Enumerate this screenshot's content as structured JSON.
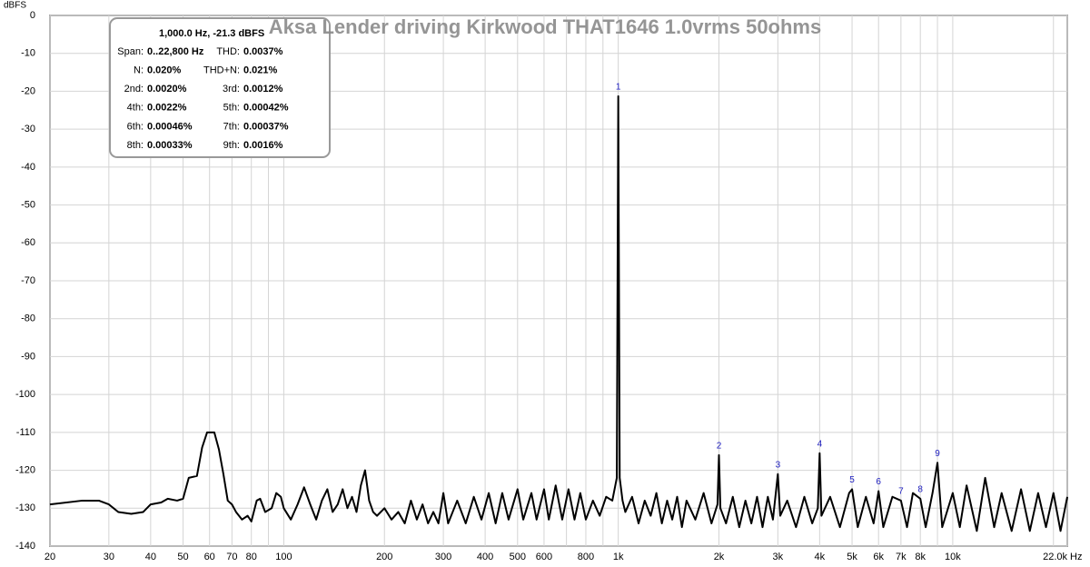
{
  "chart_data": {
    "type": "line",
    "title": "Aksa Lender driving Kirkwood THAT1646 1.0vrms 50ohms",
    "y_unit": "dBFS",
    "x_unit": "Hz",
    "xscale": "log",
    "grid": true,
    "xlim": [
      20,
      22000
    ],
    "ylim": [
      -140,
      0
    ],
    "yticks": [
      0,
      -10,
      -20,
      -30,
      -40,
      -50,
      -60,
      -70,
      -80,
      -90,
      -100,
      -110,
      -120,
      -130,
      -140
    ],
    "xticks": [
      20,
      30,
      40,
      50,
      60,
      70,
      80,
      100,
      200,
      300,
      400,
      500,
      600,
      800,
      {
        "value": 1000,
        "label": "1k"
      },
      {
        "value": 2000,
        "label": "2k"
      },
      {
        "value": 3000,
        "label": "3k"
      },
      {
        "value": 4000,
        "label": "4k"
      },
      {
        "value": 5000,
        "label": "5k"
      },
      {
        "value": 6000,
        "label": "6k"
      },
      {
        "value": 7000,
        "label": "7k"
      },
      {
        "value": 8000,
        "label": "8k"
      },
      {
        "value": 10000,
        "label": "10k"
      },
      {
        "value": 22000,
        "label": "22.0k"
      }
    ],
    "xminor": [
      90,
      700,
      900,
      9000,
      20000
    ],
    "x": [
      20,
      25,
      28,
      30,
      32,
      35,
      38,
      40,
      43,
      45,
      48,
      50,
      52,
      55,
      57,
      59,
      62,
      64,
      66,
      68,
      70,
      72,
      75,
      78,
      80,
      83,
      85,
      88,
      92,
      95,
      98,
      100,
      105,
      110,
      115,
      120,
      125,
      130,
      135,
      140,
      145,
      150,
      155,
      160,
      165,
      170,
      175,
      180,
      185,
      190,
      200,
      210,
      220,
      230,
      240,
      250,
      260,
      270,
      280,
      290,
      300,
      310,
      330,
      350,
      370,
      390,
      410,
      430,
      450,
      470,
      500,
      520,
      550,
      570,
      600,
      620,
      650,
      680,
      710,
      740,
      770,
      800,
      840,
      880,
      920,
      960,
      990,
      1000,
      1010,
      1030,
      1050,
      1100,
      1150,
      1200,
      1250,
      1300,
      1350,
      1400,
      1450,
      1500,
      1550,
      1600,
      1700,
      1800,
      1900,
      1980,
      2000,
      2020,
      2100,
      2200,
      2300,
      2400,
      2500,
      2600,
      2700,
      2800,
      2900,
      3000,
      3050,
      3200,
      3400,
      3600,
      3800,
      3950,
      4000,
      4050,
      4300,
      4600,
      4900,
      5000,
      5200,
      5500,
      5800,
      6000,
      6200,
      6600,
      7000,
      7300,
      7600,
      8000,
      8300,
      8700,
      9000,
      9300,
      10000,
      10500,
      11000,
      11800,
      12500,
      13300,
      14000,
      15000,
      16000,
      17000,
      18000,
      19000,
      20000,
      21000,
      22000
    ],
    "series": [
      {
        "color": "#000000",
        "values": [
          -129,
          -128,
          -128,
          -129,
          -131,
          -131.5,
          -131,
          -129,
          -128.5,
          -127.5,
          -128,
          -127.5,
          -122,
          -121.5,
          -114,
          -110,
          -110,
          -114.5,
          -121,
          -128,
          -129,
          -131,
          -133,
          -132,
          -133.5,
          -128,
          -127.5,
          -131,
          -130,
          -126,
          -127,
          -130,
          -133,
          -129,
          -124.5,
          -129,
          -133,
          -128,
          -125,
          -131,
          -129,
          -125,
          -130,
          -127,
          -131,
          -124,
          -120,
          -128,
          -131,
          -132,
          -130,
          -133,
          -131,
          -134,
          -128,
          -133,
          -129,
          -134,
          -131,
          -134,
          -126,
          -134,
          -128,
          -134,
          -127,
          -133,
          -126,
          -134,
          -126,
          -133,
          -125,
          -133,
          -126,
          -133,
          -125,
          -133,
          -124,
          -133,
          -125,
          -133,
          -126,
          -133,
          -128,
          -132,
          -127,
          -128,
          -122,
          -21.3,
          -122,
          -128,
          -131,
          -127,
          -134,
          -128,
          -132,
          -126,
          -134,
          -128,
          -133,
          -127,
          -135,
          -128,
          -133,
          -126,
          -134,
          -129,
          -116,
          -130,
          -134,
          -127,
          -135,
          -128,
          -134,
          -127,
          -135,
          -127,
          -133,
          -121,
          -132,
          -128,
          -135,
          -127,
          -134,
          -130,
          -115.5,
          -132,
          -127,
          -135,
          -126,
          -125,
          -135,
          -127,
          -134,
          -125.5,
          -135,
          -127,
          -128,
          -135,
          -126,
          -127.5,
          -135,
          -126,
          -118,
          -135,
          -126,
          -135,
          -124,
          -136,
          -122,
          -135,
          -126,
          -136,
          -125,
          -136,
          -126,
          -135,
          -126,
          -136,
          -127
        ]
      }
    ],
    "harmonics": [
      {
        "label": "1",
        "x": 1000,
        "y": -21.3
      },
      {
        "label": "2",
        "x": 2000,
        "y": -116
      },
      {
        "label": "3",
        "x": 3000,
        "y": -121
      },
      {
        "label": "4",
        "x": 4000,
        "y": -115.5
      },
      {
        "label": "5",
        "x": 5000,
        "y": -125
      },
      {
        "label": "6",
        "x": 6000,
        "y": -125.5
      },
      {
        "label": "7",
        "x": 7000,
        "y": -128
      },
      {
        "label": "8",
        "x": 8000,
        "y": -127.5
      },
      {
        "label": "9",
        "x": 9000,
        "y": -118
      }
    ],
    "info_box": {
      "header": "1,000.0 Hz, -21.3 dBFS",
      "rows": [
        [
          "Span:",
          "0..22,800 Hz",
          "THD:",
          "0.0037%"
        ],
        [
          "N:",
          "0.020%",
          "THD+N:",
          "0.021%"
        ],
        [
          "2nd:",
          "0.0020%",
          "3rd:",
          "0.0012%"
        ],
        [
          "4th:",
          "0.0022%",
          "5th:",
          "0.00042%"
        ],
        [
          "6th:",
          "0.00046%",
          "7th:",
          "0.00037%"
        ],
        [
          "8th:",
          "0.00033%",
          "9th:",
          "0.0016%"
        ]
      ]
    }
  }
}
